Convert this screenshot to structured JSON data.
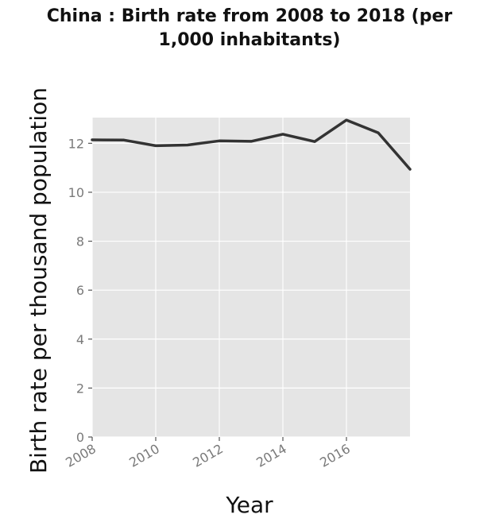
{
  "chart_data": {
    "type": "line",
    "title_line1": "China : Birth rate from 2008 to 2018 (per",
    "title_line2": "1,000 inhabitants)",
    "xlabel": "Year",
    "ylabel": "Birth rate per thousand population",
    "x": [
      2008,
      2009,
      2010,
      2011,
      2012,
      2013,
      2014,
      2015,
      2016,
      2017,
      2018
    ],
    "series": [
      {
        "values": [
          12.14,
          12.13,
          11.9,
          11.93,
          12.1,
          12.08,
          12.37,
          12.07,
          12.95,
          12.43,
          10.94
        ]
      }
    ],
    "xlim": [
      2008,
      2018
    ],
    "ylim": [
      0,
      13.05
    ],
    "xticks": [
      2008,
      2010,
      2012,
      2014,
      2016
    ],
    "yticks": [
      0,
      2,
      4,
      6,
      8,
      10,
      12
    ],
    "grid": true,
    "colors": {
      "panel": "#e5e5e5",
      "grid": "#ffffff",
      "line": "#333333"
    }
  }
}
